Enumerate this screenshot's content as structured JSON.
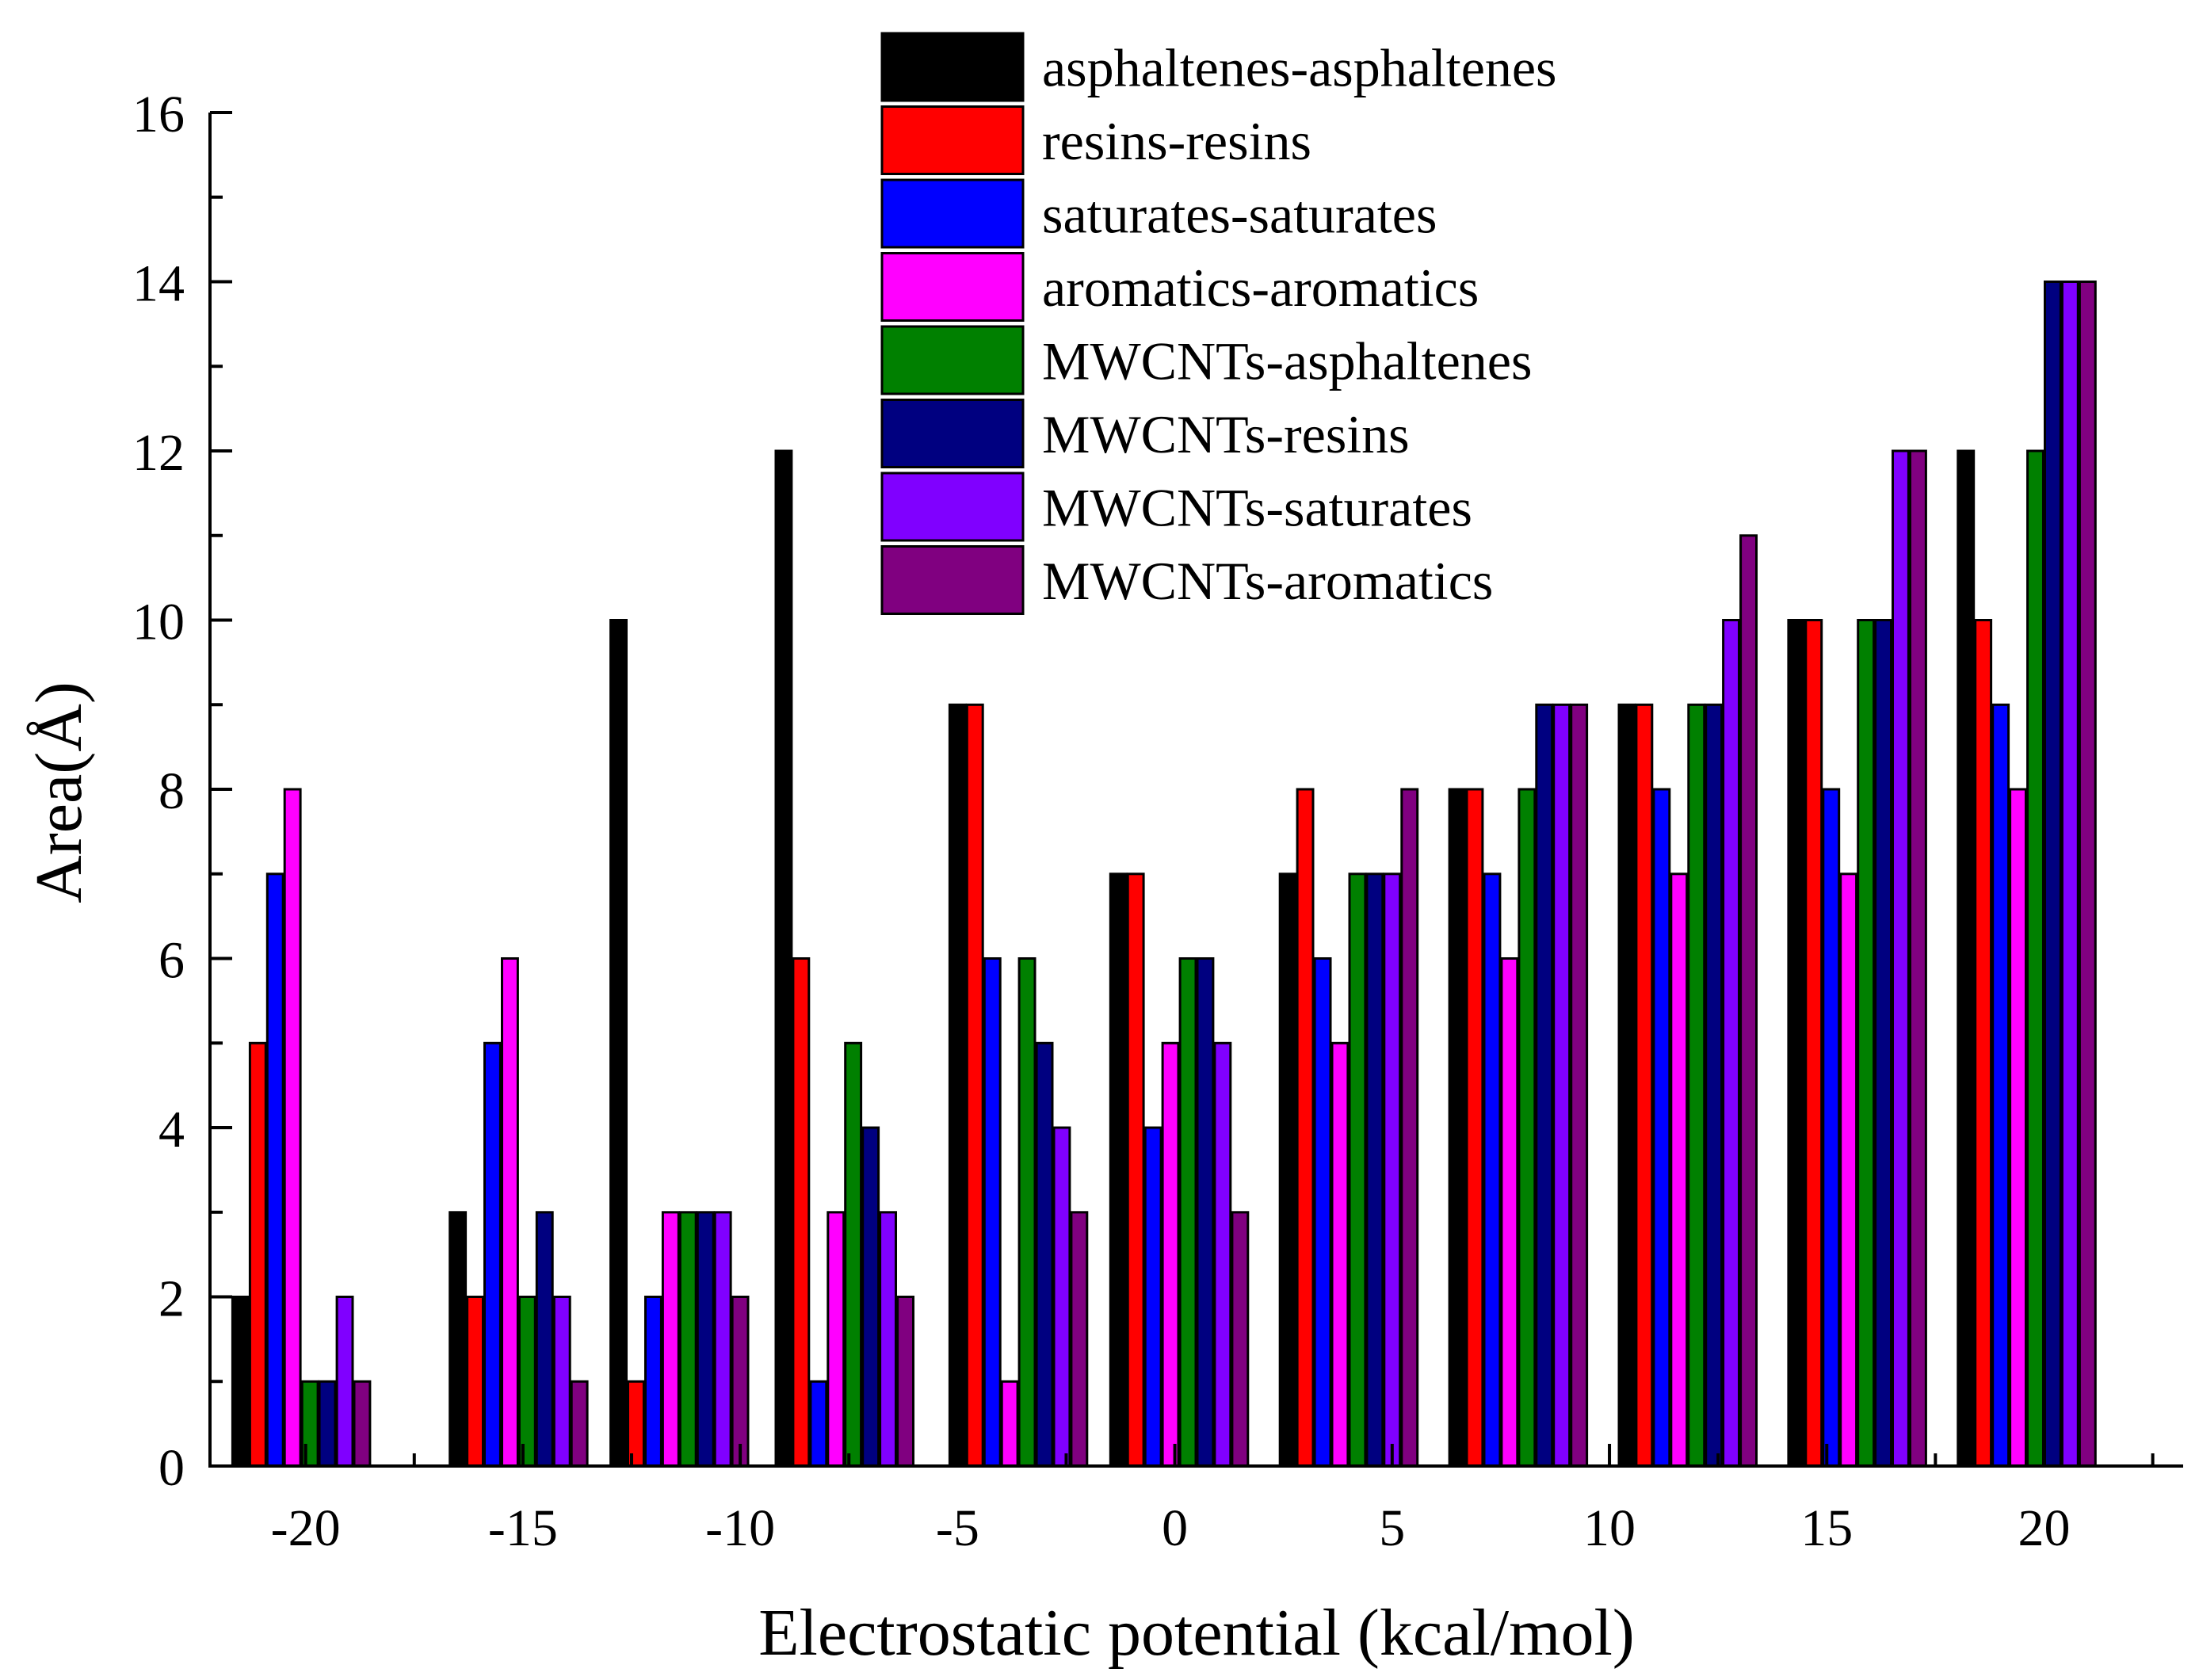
{
  "chart_data": {
    "type": "bar",
    "xlabel": "Electrostatic potential (kcal/mol)",
    "ylabel": "Area(Å)",
    "categories": [
      "-20",
      "-15",
      "-10",
      "-5",
      "0",
      "5",
      "10",
      "15",
      "20"
    ],
    "category_values": [
      -20,
      -15,
      -10,
      -5,
      0,
      5,
      10,
      15,
      20
    ],
    "xlim": [
      -22.2,
      23.2
    ],
    "ylim": [
      0,
      16
    ],
    "yticks": [
      "0",
      "2",
      "4",
      "6",
      "8",
      "10",
      "12",
      "14",
      "16"
    ],
    "grid": false,
    "legend_position": "top-center",
    "series": [
      {
        "name": "asphaltenes-asphaltenes",
        "color": "#000000",
        "x": [
          -21.5,
          -16.5,
          -12.8,
          -9.0,
          -5.0,
          -1.3,
          2.6,
          6.5,
          10.4,
          14.3,
          18.2
        ],
        "values": [
          2,
          3,
          10,
          12,
          9,
          7,
          7,
          8,
          9,
          10,
          12
        ]
      },
      {
        "name": "resins-resins",
        "color": "#ff0000",
        "x": [
          -21.1,
          -16.1,
          -12.4,
          -8.6,
          -4.6,
          -0.9,
          3.0,
          6.9,
          10.8,
          14.7,
          18.6
        ],
        "values": [
          5,
          2,
          1,
          6,
          9,
          7,
          8,
          8,
          9,
          10,
          10
        ]
      },
      {
        "name": "saturates-saturates",
        "color": "#0000ff",
        "x": [
          -20.7,
          -15.7,
          -12.0,
          -8.2,
          -4.2,
          -0.5,
          3.4,
          7.3,
          11.2,
          15.1,
          19.0
        ],
        "values": [
          7,
          5,
          2,
          1,
          6,
          4,
          6,
          7,
          8,
          8,
          9
        ]
      },
      {
        "name": "aromatics-aromatics",
        "color": "#ff00ff",
        "x": [
          -20.3,
          -15.3,
          -11.6,
          -7.8,
          -3.8,
          -0.1,
          3.8,
          7.7,
          11.6,
          15.5,
          19.4
        ],
        "values": [
          8,
          6,
          3,
          3,
          1,
          5,
          5,
          6,
          7,
          7,
          8
        ]
      },
      {
        "name": "MWCNTs-asphaltenes",
        "color": "#008000",
        "x": [
          -19.9,
          -14.9,
          -11.2,
          -7.4,
          -3.4,
          0.3,
          4.2,
          8.1,
          12.0,
          15.9,
          19.8
        ],
        "values": [
          1,
          2,
          3,
          5,
          6,
          6,
          7,
          8,
          9,
          10,
          12
        ]
      },
      {
        "name": "MWCNTs-resins",
        "color": "#000080",
        "x": [
          -19.5,
          -14.5,
          -10.8,
          -7.0,
          -3.0,
          0.7,
          4.6,
          8.5,
          12.4,
          16.3,
          20.2
        ],
        "values": [
          1,
          3,
          3,
          4,
          5,
          6,
          7,
          9,
          9,
          10,
          14
        ]
      },
      {
        "name": "MWCNTs-saturates",
        "color": "#8000ff",
        "x": [
          -19.1,
          -14.1,
          -10.4,
          -6.6,
          -2.6,
          1.1,
          5.0,
          8.9,
          12.8,
          16.7,
          20.6
        ],
        "values": [
          2,
          2,
          3,
          3,
          4,
          5,
          7,
          9,
          10,
          12,
          14
        ]
      },
      {
        "name": "MWCNTs-aromatics",
        "color": "#800080",
        "x": [
          -18.7,
          -13.7,
          -10.0,
          -6.2,
          -2.2,
          1.5,
          5.4,
          9.3,
          13.2,
          17.1,
          21.0
        ],
        "values": [
          1,
          1,
          2,
          2,
          3,
          3,
          8,
          9,
          11,
          12,
          14
        ]
      }
    ]
  }
}
